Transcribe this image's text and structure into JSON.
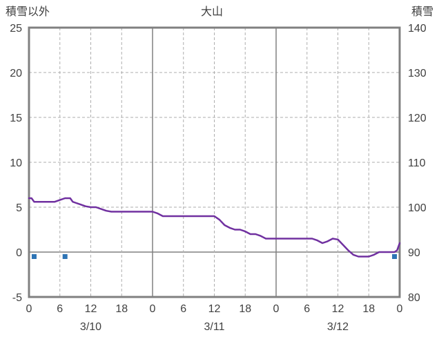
{
  "chart_data": {
    "type": "line",
    "title": "大山",
    "left_axis": {
      "label": "積雪以外",
      "min": -5,
      "max": 25,
      "step": 5,
      "ticks": [
        "25",
        "20",
        "15",
        "10",
        "5",
        "0",
        "-5"
      ]
    },
    "right_axis": {
      "label": "積雪",
      "min": 80,
      "max": 140,
      "step": 10,
      "ticks": [
        "140",
        "130",
        "120",
        "110",
        "100",
        "90",
        "80"
      ]
    },
    "x_axis": {
      "total_hours": 72,
      "tick_interval": 6,
      "tick_labels": [
        "0",
        "6",
        "12",
        "18",
        "0",
        "6",
        "12",
        "18",
        "0",
        "6",
        "12",
        "18",
        "0"
      ],
      "day_labels": [
        {
          "label": "3/10",
          "center_hour": 12
        },
        {
          "label": "3/11",
          "center_hour": 36
        },
        {
          "label": "3/12",
          "center_hour": 60
        }
      ],
      "day_boundaries": [
        24,
        48
      ]
    },
    "grid": {
      "dashed_color": "#ADADAD",
      "solid_color": "#808080",
      "frame_color": "#808080",
      "zero_line": true,
      "legend_position": "none"
    },
    "series": [
      {
        "name": "snow-depth-line",
        "type": "line",
        "axis": "left",
        "color": "#7030A0",
        "width": 2.5,
        "points": [
          [
            0,
            6
          ],
          [
            0.5,
            6
          ],
          [
            1,
            5.6
          ],
          [
            2,
            5.6
          ],
          [
            3,
            5.6
          ],
          [
            4,
            5.6
          ],
          [
            5,
            5.6
          ],
          [
            6,
            5.8
          ],
          [
            7,
            6
          ],
          [
            8,
            6
          ],
          [
            8.5,
            5.6
          ],
          [
            9,
            5.5
          ],
          [
            10,
            5.3
          ],
          [
            11,
            5.1
          ],
          [
            12,
            5
          ],
          [
            13,
            5
          ],
          [
            14,
            4.8
          ],
          [
            15,
            4.6
          ],
          [
            16,
            4.5
          ],
          [
            17,
            4.5
          ],
          [
            18,
            4.5
          ],
          [
            19,
            4.5
          ],
          [
            20,
            4.5
          ],
          [
            21,
            4.5
          ],
          [
            22,
            4.5
          ],
          [
            23,
            4.5
          ],
          [
            24,
            4.5
          ],
          [
            25,
            4.3
          ],
          [
            26,
            4
          ],
          [
            27,
            4
          ],
          [
            28,
            4
          ],
          [
            29,
            4
          ],
          [
            30,
            4
          ],
          [
            31,
            4
          ],
          [
            32,
            4
          ],
          [
            33,
            4
          ],
          [
            34,
            4
          ],
          [
            35,
            4
          ],
          [
            36,
            4
          ],
          [
            37,
            3.6
          ],
          [
            38,
            3
          ],
          [
            39,
            2.7
          ],
          [
            40,
            2.5
          ],
          [
            41,
            2.5
          ],
          [
            42,
            2.3
          ],
          [
            43,
            2
          ],
          [
            44,
            2
          ],
          [
            45,
            1.8
          ],
          [
            46,
            1.5
          ],
          [
            47,
            1.5
          ],
          [
            48,
            1.5
          ],
          [
            49,
            1.5
          ],
          [
            50,
            1.5
          ],
          [
            51,
            1.5
          ],
          [
            52,
            1.5
          ],
          [
            53,
            1.5
          ],
          [
            54,
            1.5
          ],
          [
            55,
            1.5
          ],
          [
            56,
            1.3
          ],
          [
            57,
            1
          ],
          [
            58,
            1.2
          ],
          [
            59,
            1.5
          ],
          [
            60,
            1.4
          ],
          [
            61,
            0.8
          ],
          [
            62,
            0.2
          ],
          [
            63,
            -0.3
          ],
          [
            64,
            -0.5
          ],
          [
            65,
            -0.5
          ],
          [
            66,
            -0.5
          ],
          [
            67,
            -0.3
          ],
          [
            68,
            0
          ],
          [
            69,
            0
          ],
          [
            70,
            0
          ],
          [
            71,
            0
          ],
          [
            71.5,
            0.2
          ],
          [
            72,
            1
          ]
        ]
      },
      {
        "name": "precip-markers",
        "type": "scatter",
        "marker": "square",
        "axis": "left",
        "color": "#2E74B5",
        "size": 7,
        "points": [
          [
            1,
            -0.5
          ],
          [
            7,
            -0.5
          ],
          [
            71,
            -0.5
          ]
        ]
      }
    ]
  }
}
